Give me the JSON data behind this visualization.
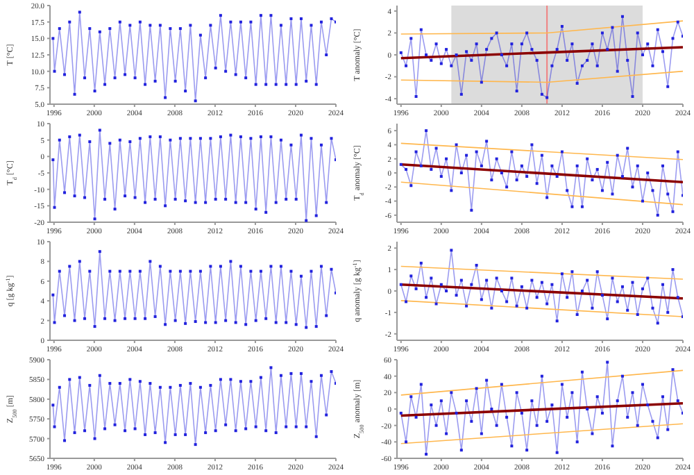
{
  "chart_data": [
    {
      "type": "line",
      "ylabel": "T [°C]",
      "xlim": [
        1995.6,
        2024
      ],
      "xticks": [
        1996,
        2000,
        2004,
        2008,
        2012,
        2016,
        2020,
        2024
      ],
      "ylim": [
        5,
        20
      ],
      "yticks": [
        {
          "value": 5,
          "label": "5.0"
        },
        {
          "value": 7.5,
          "label": "7.5"
        },
        {
          "value": 10,
          "label": "10.0"
        },
        {
          "value": 12.5,
          "label": "12.5"
        },
        {
          "value": 15,
          "label": "15.0"
        },
        {
          "value": 17.5,
          "label": "17.5"
        },
        {
          "value": 20,
          "label": "20.0"
        }
      ],
      "marker": "square",
      "x": [
        1995.9,
        1996.05,
        1996.55,
        1997.05,
        1997.55,
        1998.05,
        1998.55,
        1999.05,
        1999.55,
        2000.05,
        2000.55,
        2001.05,
        2001.55,
        2002.05,
        2002.55,
        2003.05,
        2003.55,
        2004.05,
        2004.55,
        2005.05,
        2005.55,
        2006.05,
        2006.55,
        2007.05,
        2007.55,
        2008.05,
        2008.55,
        2009.05,
        2009.55,
        2010.05,
        2010.55,
        2011.05,
        2011.55,
        2012.05,
        2012.55,
        2013.05,
        2013.55,
        2014.05,
        2014.55,
        2015.05,
        2015.55,
        2016.05,
        2016.55,
        2017.05,
        2017.55,
        2018.05,
        2018.55,
        2019.05,
        2019.55,
        2020.05,
        2020.55,
        2021.05,
        2021.55,
        2022.05,
        2022.55,
        2023.05,
        2023.55,
        2024
      ],
      "series": [
        {
          "color": "#2222dd",
          "values": [
            15,
            10,
            16.5,
            9.5,
            17.5,
            6.5,
            19,
            9,
            16.5,
            7,
            16,
            8,
            16.5,
            9,
            17.5,
            9.5,
            17,
            9,
            17.5,
            8,
            17,
            8.5,
            17,
            6,
            16.5,
            8.5,
            16.5,
            7,
            17,
            5.5,
            15.5,
            9,
            17,
            10.5,
            18.5,
            10,
            17.5,
            9.5,
            17.5,
            9,
            17.5,
            8,
            18.5,
            8,
            18.5,
            8,
            17,
            8,
            18,
            8,
            18,
            8.5,
            17,
            8,
            17.5,
            12.5,
            18,
            17.5
          ]
        }
      ]
    },
    {
      "type": "line",
      "ylabel": "T anomaly [°C]",
      "xlim": [
        1995.6,
        2024
      ],
      "xticks": [
        1996,
        2000,
        2004,
        2008,
        2012,
        2016,
        2020,
        2024
      ],
      "ylim": [
        -4.5,
        4.5
      ],
      "yticks": [
        -4,
        -2,
        0,
        2,
        4
      ],
      "marker": "square",
      "x": [
        1996,
        1996.5,
        1997,
        1997.5,
        1998,
        1998.5,
        1999,
        1999.5,
        2000,
        2000.5,
        2001,
        2001.5,
        2002,
        2002.5,
        2003,
        2003.5,
        2004,
        2004.5,
        2005,
        2005.5,
        2006,
        2006.5,
        2007,
        2007.5,
        2008,
        2008.5,
        2009,
        2009.5,
        2010,
        2010.5,
        2011,
        2011.5,
        2012,
        2012.5,
        2013,
        2013.5,
        2014,
        2014.5,
        2015,
        2015.5,
        2016,
        2016.5,
        2017,
        2017.5,
        2018,
        2018.5,
        2019,
        2019.5,
        2020,
        2020.5,
        2021,
        2021.5,
        2022,
        2022.5,
        2023,
        2023.5,
        2024
      ],
      "series": [
        {
          "color": "#2222dd",
          "values": [
            0.2,
            -1,
            1.5,
            -3.8,
            2.3,
            0,
            -0.5,
            1,
            -0.8,
            0.5,
            -1,
            0,
            -3.6,
            0.3,
            -0.5,
            1,
            -2.5,
            0.5,
            1.5,
            2,
            0,
            -1,
            1,
            -3.3,
            1,
            2,
            0.5,
            -0.5,
            -3.6,
            -3.9,
            -1,
            0.5,
            2.6,
            -0.5,
            1,
            -2.6,
            -1,
            -0.5,
            1,
            -1,
            2,
            0.5,
            2.5,
            -1.5,
            3.5,
            -0.5,
            -3.8,
            2,
            0,
            1,
            -1,
            2.3,
            0.3,
            -2.9,
            1.5,
            3,
            1.7
          ]
        },
        {
          "type": "line",
          "color": "#8b0000",
          "marker": "none",
          "x": [
            1996,
            2024
          ],
          "values": [
            -0.3,
            0.7
          ]
        },
        {
          "type": "line",
          "color": "#ffb74d",
          "marker": "none",
          "x": [
            1996,
            2010.5,
            2024
          ],
          "values": [
            1.9,
            2.0,
            3.1
          ]
        },
        {
          "type": "line",
          "color": "#ffb74d",
          "marker": "none",
          "x": [
            1996,
            2010.5,
            2024
          ],
          "values": [
            -2.3,
            -2.5,
            -1.5
          ]
        }
      ],
      "bands": [
        {
          "axis": "x",
          "from": 2001,
          "to": 2020,
          "color": "#dcdcdc"
        }
      ],
      "ref_lines": [
        {
          "axis": "x",
          "value": 2010.5,
          "color": "#f08080"
        }
      ]
    },
    {
      "type": "line",
      "ylabel": "T$_{d}$ [°C]",
      "xlim": [
        1995.6,
        2024
      ],
      "xticks": [
        1996,
        2000,
        2004,
        2008,
        2012,
        2016,
        2020,
        2024
      ],
      "ylim": [
        -20,
        10
      ],
      "yticks": [
        -20,
        -15,
        -10,
        -5,
        0,
        5,
        10
      ],
      "marker": "square",
      "x": [
        1995.9,
        1996.05,
        1996.55,
        1997.05,
        1997.55,
        1998.05,
        1998.55,
        1999.05,
        1999.55,
        2000.05,
        2000.55,
        2001.05,
        2001.55,
        2002.05,
        2002.55,
        2003.05,
        2003.55,
        2004.05,
        2004.55,
        2005.05,
        2005.55,
        2006.05,
        2006.55,
        2007.05,
        2007.55,
        2008.05,
        2008.55,
        2009.05,
        2009.55,
        2010.05,
        2010.55,
        2011.05,
        2011.55,
        2012.05,
        2012.55,
        2013.05,
        2013.55,
        2014.05,
        2014.55,
        2015.05,
        2015.55,
        2016.05,
        2016.55,
        2017.05,
        2017.55,
        2018.05,
        2018.55,
        2019.05,
        2019.55,
        2020.05,
        2020.55,
        2021.05,
        2021.55,
        2022.05,
        2022.55,
        2023.05,
        2023.55,
        2024
      ],
      "series": [
        {
          "color": "#2222dd",
          "values": [
            -1,
            -15.5,
            5,
            -11,
            6,
            -12,
            6.5,
            -12.5,
            4.5,
            -19,
            8,
            -13,
            4,
            -16,
            5,
            -12,
            4.5,
            -12.5,
            5.5,
            -14,
            6,
            -13,
            6,
            -15,
            5,
            -13,
            5.5,
            -13.5,
            5.5,
            -14,
            5.5,
            -14,
            5.5,
            -13,
            6,
            -13,
            6.5,
            -14,
            6,
            -14,
            5.5,
            -16,
            6,
            -17,
            6,
            -14,
            5,
            -13,
            3.5,
            -13,
            6.5,
            -19.5,
            5.5,
            -18,
            3.5,
            -14,
            5.5,
            -1
          ]
        }
      ]
    },
    {
      "type": "line",
      "ylabel": "T$_{d}$ anomaly [°C]",
      "xlim": [
        1995.6,
        2024
      ],
      "xticks": [
        1996,
        2000,
        2004,
        2008,
        2012,
        2016,
        2020,
        2024
      ],
      "ylim": [
        -7,
        7
      ],
      "yticks": [
        -6,
        -4,
        -2,
        0,
        2,
        4,
        6
      ],
      "marker": "square",
      "x": [
        1996,
        1996.5,
        1997,
        1997.5,
        1998,
        1998.5,
        1999,
        1999.5,
        2000,
        2000.5,
        2001,
        2001.5,
        2002,
        2002.5,
        2003,
        2003.5,
        2004,
        2004.5,
        2005,
        2005.5,
        2006,
        2006.5,
        2007,
        2007.5,
        2008,
        2008.5,
        2009,
        2009.5,
        2010,
        2010.5,
        2011,
        2011.5,
        2012,
        2012.5,
        2013,
        2013.5,
        2014,
        2014.5,
        2015,
        2015.5,
        2016,
        2016.5,
        2017,
        2017.5,
        2018,
        2018.5,
        2019,
        2019.5,
        2020,
        2020.5,
        2021,
        2021.5,
        2022,
        2022.5,
        2023,
        2023.5,
        2024
      ],
      "series": [
        {
          "color": "#2222dd",
          "values": [
            1.2,
            0.5,
            -1.8,
            3,
            1,
            6,
            0.5,
            3.5,
            -0.5,
            2,
            -2.5,
            4,
            0,
            2.5,
            -5.3,
            3,
            1,
            4.5,
            -1,
            2,
            0,
            -2,
            3,
            -1,
            1,
            -0.5,
            4,
            -1.5,
            2.5,
            -3.5,
            1,
            -0.5,
            3,
            -2.5,
            -4.8,
            1,
            -4.8,
            2,
            -1,
            0.5,
            -2.5,
            1.5,
            -3,
            2.5,
            -0.5,
            3.5,
            -2,
            1,
            -4,
            0,
            -2.5,
            -6,
            1,
            -3,
            -5.5,
            3,
            -3.2
          ]
        },
        {
          "type": "line",
          "color": "#8b0000",
          "marker": "none",
          "x": [
            1996,
            2024
          ],
          "values": [
            1.2,
            -1.3
          ]
        },
        {
          "type": "line",
          "color": "#ffb74d",
          "marker": "none",
          "x": [
            1996,
            2024
          ],
          "values": [
            4.2,
            1.9
          ]
        },
        {
          "type": "line",
          "color": "#ffb74d",
          "marker": "none",
          "x": [
            1996,
            2024
          ],
          "values": [
            -1.3,
            -4.5
          ]
        }
      ]
    },
    {
      "type": "line",
      "ylabel": "q [g kg$^{-1}$]",
      "xlim": [
        1995.6,
        2024
      ],
      "xticks": [
        1996,
        2000,
        2004,
        2008,
        2012,
        2016,
        2020,
        2024
      ],
      "ylim": [
        0,
        10
      ],
      "yticks": [
        0,
        2,
        4,
        6,
        8,
        10
      ],
      "marker": "square",
      "x": [
        1995.9,
        1996.05,
        1996.55,
        1997.05,
        1997.55,
        1998.05,
        1998.55,
        1999.05,
        1999.55,
        2000.05,
        2000.55,
        2001.05,
        2001.55,
        2002.05,
        2002.55,
        2003.05,
        2003.55,
        2004.05,
        2004.55,
        2005.05,
        2005.55,
        2006.05,
        2006.55,
        2007.05,
        2007.55,
        2008.05,
        2008.55,
        2009.05,
        2009.55,
        2010.05,
        2010.55,
        2011.05,
        2011.55,
        2012.05,
        2012.55,
        2013.05,
        2013.55,
        2014.05,
        2014.55,
        2015.05,
        2015.55,
        2016.05,
        2016.55,
        2017.05,
        2017.55,
        2018.05,
        2018.55,
        2019.05,
        2019.55,
        2020.05,
        2020.55,
        2021.05,
        2021.55,
        2022.05,
        2022.55,
        2023.05,
        2023.55,
        2024
      ],
      "series": [
        {
          "color": "#2222dd",
          "values": [
            4.6,
            1.8,
            7,
            2.5,
            7.5,
            2,
            8,
            2.2,
            7,
            1.4,
            9,
            2.2,
            7,
            2,
            7,
            2.2,
            7,
            2.2,
            7,
            2.2,
            8,
            2.4,
            7.5,
            1.6,
            7,
            2,
            7,
            1.7,
            7,
            1.9,
            7,
            1.8,
            7.5,
            1.8,
            7.5,
            2,
            8,
            1.8,
            7.5,
            1.6,
            7,
            2,
            7,
            2.2,
            7.5,
            1.8,
            7.5,
            1.8,
            7,
            1.6,
            6.5,
            1.3,
            7,
            1.4,
            7.5,
            2.5,
            7.2,
            4.8
          ]
        }
      ]
    },
    {
      "type": "line",
      "ylabel": "q anomaly [g kg$^{-1}$]",
      "xlim": [
        1995.6,
        2024
      ],
      "xticks": [
        1996,
        2000,
        2004,
        2008,
        2012,
        2016,
        2020,
        2024
      ],
      "ylim": [
        -2.3,
        2.3
      ],
      "yticks": [
        -2,
        -1,
        0,
        1,
        2
      ],
      "marker": "square",
      "x": [
        1996,
        1996.5,
        1997,
        1997.5,
        1998,
        1998.5,
        1999,
        1999.5,
        2000,
        2000.5,
        2001,
        2001.5,
        2002,
        2002.5,
        2003,
        2003.5,
        2004,
        2004.5,
        2005,
        2005.5,
        2006,
        2006.5,
        2007,
        2007.5,
        2008,
        2008.5,
        2009,
        2009.5,
        2010,
        2010.5,
        2011,
        2011.5,
        2012,
        2012.5,
        2013,
        2013.5,
        2014,
        2014.5,
        2015,
        2015.5,
        2016,
        2016.5,
        2017,
        2017.5,
        2018,
        2018.5,
        2019,
        2019.5,
        2020,
        2020.5,
        2021,
        2021.5,
        2022,
        2022.5,
        2023,
        2023.5,
        2024
      ],
      "series": [
        {
          "color": "#2222dd",
          "values": [
            0.3,
            -0.5,
            0.7,
            0.1,
            1.3,
            -0.3,
            0.6,
            -0.6,
            0.3,
            0,
            1.9,
            -0.2,
            0.5,
            -0.7,
            0.3,
            1.2,
            -0.4,
            0.5,
            -0.8,
            0.6,
            0,
            -0.5,
            0.6,
            -0.7,
            0.2,
            -0.8,
            0.5,
            -0.3,
            0.4,
            -0.6,
            0.3,
            -1.4,
            0.8,
            -0.3,
            0.9,
            -1.1,
            0,
            0.5,
            -0.8,
            0.9,
            -0.2,
            -1.3,
            0.6,
            -0.5,
            0.2,
            -0.9,
            0.4,
            -1.1,
            0.1,
            0.6,
            -0.8,
            -1.5,
            0.3,
            -1,
            1,
            -0.3,
            -1.2
          ]
        },
        {
          "type": "line",
          "color": "#8b0000",
          "marker": "none",
          "x": [
            1996,
            2024
          ],
          "values": [
            0.3,
            -0.35
          ]
        },
        {
          "type": "line",
          "color": "#ffb74d",
          "marker": "none",
          "x": [
            1996,
            2024
          ],
          "values": [
            1.15,
            0.55
          ]
        },
        {
          "type": "line",
          "color": "#ffb74d",
          "marker": "none",
          "x": [
            1996,
            2024
          ],
          "values": [
            -0.45,
            -1.2
          ]
        }
      ]
    },
    {
      "type": "line",
      "ylabel": "Z$_{500}$ [m]",
      "xlim": [
        1995.6,
        2024
      ],
      "xticks": [
        1996,
        2000,
        2004,
        2008,
        2012,
        2016,
        2020,
        2024
      ],
      "ylim": [
        5650,
        5900
      ],
      "yticks": [
        5650,
        5700,
        5750,
        5800,
        5850,
        5900
      ],
      "marker": "square",
      "x": [
        1995.9,
        1996.05,
        1996.55,
        1997.05,
        1997.55,
        1998.05,
        1998.55,
        1999.05,
        1999.55,
        2000.05,
        2000.55,
        2001.05,
        2001.55,
        2002.05,
        2002.55,
        2003.05,
        2003.55,
        2004.05,
        2004.55,
        2005.05,
        2005.55,
        2006.05,
        2006.55,
        2007.05,
        2007.55,
        2008.05,
        2008.55,
        2009.05,
        2009.55,
        2010.05,
        2010.55,
        2011.05,
        2011.55,
        2012.05,
        2012.55,
        2013.05,
        2013.55,
        2014.05,
        2014.55,
        2015.05,
        2015.55,
        2016.05,
        2016.55,
        2017.05,
        2017.55,
        2018.05,
        2018.55,
        2019.05,
        2019.55,
        2020.05,
        2020.55,
        2021.05,
        2021.55,
        2022.05,
        2022.55,
        2023.05,
        2023.55,
        2024
      ],
      "series": [
        {
          "color": "#2222dd",
          "values": [
            5785,
            5730,
            5830,
            5695,
            5850,
            5715,
            5855,
            5720,
            5835,
            5700,
            5860,
            5725,
            5840,
            5735,
            5840,
            5720,
            5850,
            5725,
            5845,
            5710,
            5840,
            5715,
            5830,
            5690,
            5830,
            5710,
            5835,
            5710,
            5840,
            5685,
            5830,
            5715,
            5835,
            5720,
            5850,
            5735,
            5850,
            5720,
            5845,
            5725,
            5845,
            5730,
            5855,
            5720,
            5880,
            5715,
            5860,
            5730,
            5865,
            5730,
            5865,
            5730,
            5845,
            5705,
            5860,
            5760,
            5870,
            5840
          ]
        }
      ]
    },
    {
      "type": "line",
      "ylabel": "Z$_{500}$ anomaly [m]",
      "xlim": [
        1995.6,
        2024
      ],
      "xticks": [
        1996,
        2000,
        2004,
        2008,
        2012,
        2016,
        2020,
        2024
      ],
      "ylim": [
        -60,
        60
      ],
      "yticks": [
        -60,
        -40,
        -20,
        0,
        20,
        40,
        60
      ],
      "marker": "square",
      "x": [
        1996,
        1996.5,
        1997,
        1997.5,
        1998,
        1998.5,
        1999,
        1999.5,
        2000,
        2000.5,
        2001,
        2001.5,
        2002,
        2002.5,
        2003,
        2003.5,
        2004,
        2004.5,
        2005,
        2005.5,
        2006,
        2006.5,
        2007,
        2007.5,
        2008,
        2008.5,
        2009,
        2009.5,
        2010,
        2010.5,
        2011,
        2011.5,
        2012,
        2012.5,
        2013,
        2013.5,
        2014,
        2014.5,
        2015,
        2015.5,
        2016,
        2016.5,
        2017,
        2017.5,
        2018,
        2018.5,
        2019,
        2019.5,
        2020,
        2020.5,
        2021,
        2021.5,
        2022,
        2022.5,
        2023,
        2023.5,
        2024
      ],
      "series": [
        {
          "color": "#2222dd",
          "values": [
            -5,
            -40,
            15,
            -10,
            30,
            -55,
            5,
            -20,
            10,
            -30,
            20,
            -5,
            -50,
            10,
            -15,
            25,
            -30,
            35,
            0,
            -20,
            30,
            -10,
            -45,
            20,
            -5,
            -50,
            10,
            -20,
            40,
            -15,
            5,
            -53,
            30,
            -10,
            20,
            -40,
            45,
            0,
            -30,
            15,
            -5,
            57,
            -45,
            10,
            40,
            -10,
            20,
            -20,
            30,
            5,
            -15,
            -35,
            15,
            -25,
            48,
            10,
            -5
          ]
        },
        {
          "type": "line",
          "color": "#8b0000",
          "marker": "none",
          "x": [
            1996,
            2024
          ],
          "values": [
            -8,
            7
          ]
        },
        {
          "type": "line",
          "color": "#ffb74d",
          "marker": "none",
          "x": [
            1996,
            2024
          ],
          "values": [
            17,
            47
          ]
        },
        {
          "type": "line",
          "color": "#ffb74d",
          "marker": "none",
          "x": [
            1996,
            2024
          ],
          "values": [
            -42,
            -18
          ]
        }
      ]
    }
  ]
}
